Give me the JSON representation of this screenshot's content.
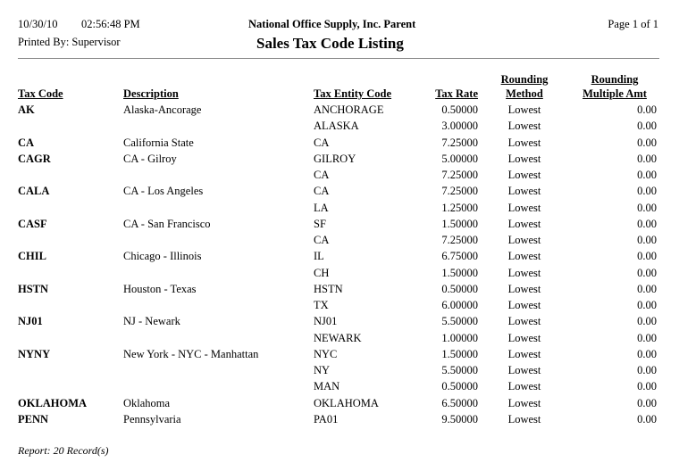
{
  "header": {
    "date": "10/30/10",
    "time": "02:56:48 PM",
    "printed_by": "Printed By: Supervisor",
    "company": "National Office Supply, Inc. Parent",
    "title": "Sales Tax Code Listing",
    "page": "Page 1 of  1"
  },
  "columns": {
    "tax_code": "Tax Code",
    "description": "Description",
    "entity": "Tax Entity Code",
    "rate": "Tax Rate",
    "method_1": "Rounding",
    "method_2": "Method",
    "amt_1": "Rounding",
    "amt_2": "Multiple Amt"
  },
  "rows": [
    {
      "code": "AK",
      "desc": "Alaska-Ancorage",
      "entity": "ANCHORAGE",
      "rate": "0.50000",
      "method": "Lowest",
      "amt": "0.00"
    },
    {
      "code": "",
      "desc": "",
      "entity": "ALASKA",
      "rate": "3.00000",
      "method": "Lowest",
      "amt": "0.00"
    },
    {
      "code": "CA",
      "desc": "California State",
      "entity": "CA",
      "rate": "7.25000",
      "method": "Lowest",
      "amt": "0.00"
    },
    {
      "code": "CAGR",
      "desc": "CA - Gilroy",
      "entity": "GILROY",
      "rate": "5.00000",
      "method": "Lowest",
      "amt": "0.00"
    },
    {
      "code": "",
      "desc": "",
      "entity": "CA",
      "rate": "7.25000",
      "method": "Lowest",
      "amt": "0.00"
    },
    {
      "code": "CALA",
      "desc": "CA - Los Angeles",
      "entity": "CA",
      "rate": "7.25000",
      "method": "Lowest",
      "amt": "0.00"
    },
    {
      "code": "",
      "desc": "",
      "entity": "LA",
      "rate": "1.25000",
      "method": "Lowest",
      "amt": "0.00"
    },
    {
      "code": "CASF",
      "desc": "CA - San Francisco",
      "entity": "SF",
      "rate": "1.50000",
      "method": "Lowest",
      "amt": "0.00"
    },
    {
      "code": "",
      "desc": "",
      "entity": "CA",
      "rate": "7.25000",
      "method": "Lowest",
      "amt": "0.00"
    },
    {
      "code": "CHIL",
      "desc": "Chicago - Illinois",
      "entity": "IL",
      "rate": "6.75000",
      "method": "Lowest",
      "amt": "0.00"
    },
    {
      "code": "",
      "desc": "",
      "entity": "CH",
      "rate": "1.50000",
      "method": "Lowest",
      "amt": "0.00"
    },
    {
      "code": "HSTN",
      "desc": "Houston - Texas",
      "entity": "HSTN",
      "rate": "0.50000",
      "method": "Lowest",
      "amt": "0.00"
    },
    {
      "code": "",
      "desc": "",
      "entity": "TX",
      "rate": "6.00000",
      "method": "Lowest",
      "amt": "0.00"
    },
    {
      "code": "NJ01",
      "desc": "NJ - Newark",
      "entity": "NJ01",
      "rate": "5.50000",
      "method": "Lowest",
      "amt": "0.00"
    },
    {
      "code": "",
      "desc": "",
      "entity": "NEWARK",
      "rate": "1.00000",
      "method": "Lowest",
      "amt": "0.00"
    },
    {
      "code": "NYNY",
      "desc": "New York - NYC - Manhattan",
      "entity": "NYC",
      "rate": "1.50000",
      "method": "Lowest",
      "amt": "0.00"
    },
    {
      "code": "",
      "desc": "",
      "entity": "NY",
      "rate": "5.50000",
      "method": "Lowest",
      "amt": "0.00"
    },
    {
      "code": "",
      "desc": "",
      "entity": "MAN",
      "rate": "0.50000",
      "method": "Lowest",
      "amt": "0.00"
    },
    {
      "code": "OKLAHOMA",
      "desc": "Oklahoma",
      "entity": "OKLAHOMA",
      "rate": "6.50000",
      "method": "Lowest",
      "amt": "0.00"
    },
    {
      "code": "PENN",
      "desc": "Pennsylvaria",
      "entity": "PA01",
      "rate": "9.50000",
      "method": "Lowest",
      "amt": "0.00"
    }
  ],
  "footer": {
    "records": "Report: 20 Record(s)"
  }
}
